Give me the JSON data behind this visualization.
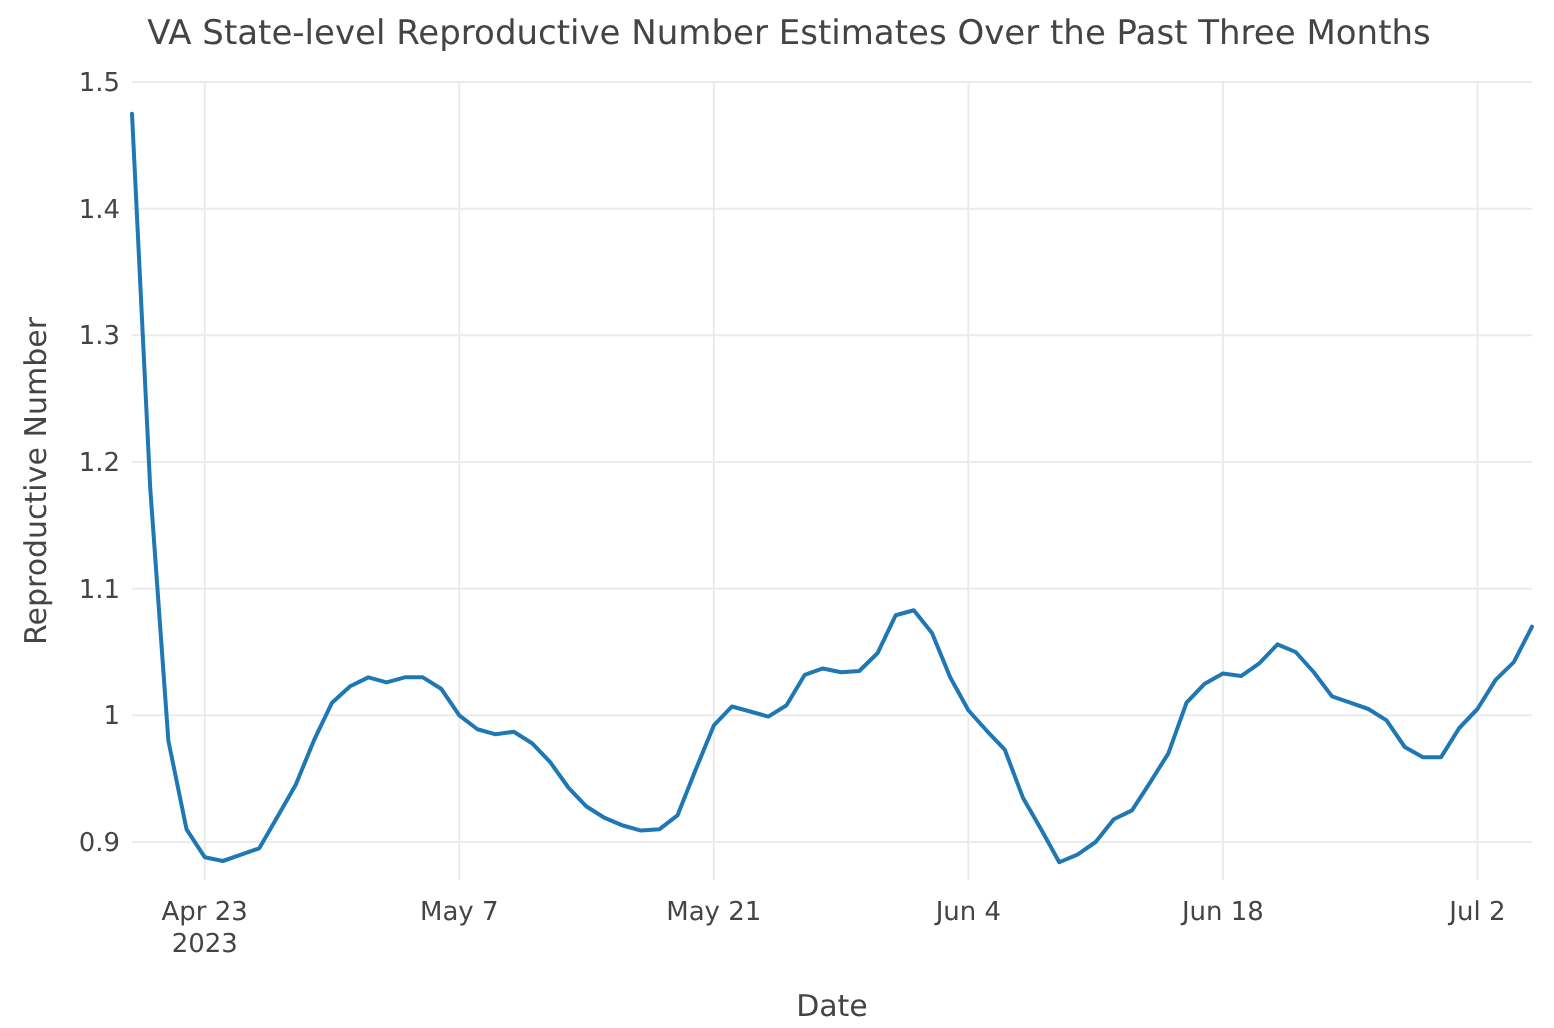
{
  "chart_data": {
    "type": "line",
    "title": "VA State-level Reproductive Number Estimates Over the Past Three Months",
    "xlabel": "Date",
    "ylabel": "Reproductive Number",
    "x": [
      "2023-04-19",
      "2023-04-20",
      "2023-04-21",
      "2023-04-22",
      "2023-04-23",
      "2023-04-24",
      "2023-04-25",
      "2023-04-26",
      "2023-04-27",
      "2023-04-28",
      "2023-04-29",
      "2023-04-30",
      "2023-05-01",
      "2023-05-02",
      "2023-05-03",
      "2023-05-04",
      "2023-05-05",
      "2023-05-06",
      "2023-05-07",
      "2023-05-08",
      "2023-05-09",
      "2023-05-10",
      "2023-05-11",
      "2023-05-12",
      "2023-05-13",
      "2023-05-14",
      "2023-05-15",
      "2023-05-16",
      "2023-05-17",
      "2023-05-18",
      "2023-05-19",
      "2023-05-20",
      "2023-05-21",
      "2023-05-22",
      "2023-05-23",
      "2023-05-24",
      "2023-05-25",
      "2023-05-26",
      "2023-05-27",
      "2023-05-28",
      "2023-05-29",
      "2023-05-30",
      "2023-05-31",
      "2023-06-01",
      "2023-06-02",
      "2023-06-03",
      "2023-06-04",
      "2023-06-05",
      "2023-06-06",
      "2023-06-07",
      "2023-06-08",
      "2023-06-09",
      "2023-06-10",
      "2023-06-11",
      "2023-06-12",
      "2023-06-13",
      "2023-06-14",
      "2023-06-15",
      "2023-06-16",
      "2023-06-17",
      "2023-06-18",
      "2023-06-19",
      "2023-06-20",
      "2023-06-21",
      "2023-06-22",
      "2023-06-23",
      "2023-06-24",
      "2023-06-25",
      "2023-06-26",
      "2023-06-27",
      "2023-06-28",
      "2023-06-29",
      "2023-06-30",
      "2023-07-01",
      "2023-07-02",
      "2023-07-03",
      "2023-07-04",
      "2023-07-05"
    ],
    "series": [
      {
        "color": "#1f77b4",
        "values": [
          1.475,
          1.18,
          0.98,
          0.91,
          0.888,
          0.885,
          0.89,
          0.895,
          0.92,
          0.945,
          0.98,
          1.01,
          1.023,
          1.03,
          1.026,
          1.03,
          1.03,
          1.021,
          1.0,
          0.989,
          0.985,
          0.987,
          0.978,
          0.963,
          0.943,
          0.928,
          0.919,
          0.913,
          0.909,
          0.91,
          0.921,
          0.957,
          0.992,
          1.007,
          1.003,
          0.999,
          1.008,
          1.032,
          1.037,
          1.034,
          1.035,
          1.049,
          1.079,
          1.083,
          1.065,
          1.03,
          1.004,
          0.988,
          0.973,
          0.935,
          0.91,
          0.884,
          0.89,
          0.9,
          0.918,
          0.925,
          0.947,
          0.97,
          1.01,
          1.025,
          1.033,
          1.031,
          1.041,
          1.056,
          1.05,
          1.034,
          1.015,
          1.01,
          1.005,
          0.996,
          0.975,
          0.967,
          0.967,
          0.99,
          1.005,
          1.028,
          1.042,
          1.07
        ]
      }
    ],
    "xlim": [
      "2023-04-19",
      "2023-07-05"
    ],
    "xticks": [
      {
        "value": "2023-04-23",
        "label": "Apr 23\n2023"
      },
      {
        "value": "2023-05-07",
        "label": "May 7"
      },
      {
        "value": "2023-05-21",
        "label": "May 21"
      },
      {
        "value": "2023-06-04",
        "label": "Jun 4"
      },
      {
        "value": "2023-06-18",
        "label": "Jun 18"
      },
      {
        "value": "2023-07-02",
        "label": "Jul 2"
      }
    ],
    "ylim": [
      0.87,
      1.5
    ],
    "yticks": [
      0.9,
      1,
      1.1,
      1.2,
      1.3,
      1.4,
      1.5
    ],
    "grid": true,
    "marker": "none",
    "line_style": "solid"
  }
}
